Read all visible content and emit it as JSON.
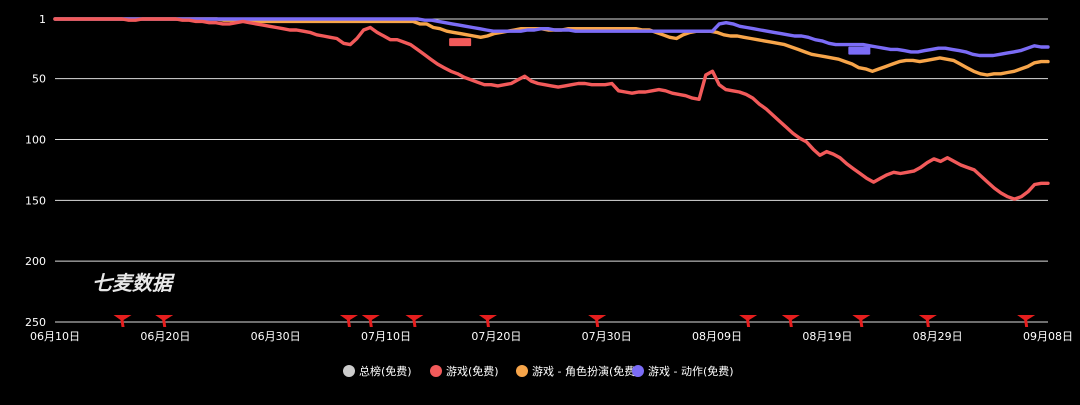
{
  "chart_data": {
    "type": "line",
    "watermark": "七麦数据",
    "y_axis": {
      "reversed": true,
      "ylim": [
        1,
        250
      ],
      "ticks": [
        "1",
        "50",
        "100",
        "150",
        "200",
        "250"
      ]
    },
    "x_axis": {
      "tick_labels": [
        "06月10日",
        "06月20日",
        "06月30日",
        "07月10日",
        "07月20日",
        "07月30日",
        "08月09日",
        "08月19日",
        "08月29日",
        "09月08日"
      ]
    },
    "grid": "horizontal",
    "legend_position": "bottom",
    "colors": {
      "overall": "#cccccc",
      "games": "#f25a5a",
      "games_sub1": "#f7a54a",
      "games_sub2": "#7b6cf6",
      "marker": "#e61e1e",
      "grid": "#dddddd"
    },
    "series": [
      {
        "key": "overall",
        "name": "总榜(免费)",
        "color": "#cccccc",
        "values": []
      },
      {
        "key": "games",
        "name": "游戏(免费)",
        "color": "#f25a5a",
        "values": [
          1,
          1,
          1,
          1,
          1,
          1,
          1,
          1,
          1,
          1,
          1,
          2,
          2,
          1,
          1,
          1,
          1,
          1,
          1,
          2,
          2,
          3,
          3,
          4,
          4,
          5,
          5,
          4,
          3,
          4,
          5,
          6,
          7,
          8,
          9,
          10,
          10,
          11,
          12,
          14,
          15,
          16,
          17,
          21,
          22,
          17,
          10,
          8,
          12,
          15,
          18,
          18,
          20,
          22,
          26,
          30,
          34,
          38,
          41,
          44,
          46,
          49,
          51,
          53,
          55,
          55,
          56,
          55,
          54,
          51,
          48,
          52,
          54,
          55,
          56,
          57,
          56,
          55,
          54,
          54,
          55,
          55,
          55,
          54,
          60,
          61,
          62,
          61,
          61,
          60,
          59,
          60,
          62,
          63,
          64,
          66,
          67,
          47,
          44,
          55,
          59,
          60,
          61,
          63,
          66,
          71,
          75,
          80,
          85,
          90,
          95,
          99,
          102,
          108,
          113,
          110,
          112,
          115,
          120,
          124,
          128,
          132,
          135,
          132,
          129,
          127,
          128,
          127,
          126,
          123,
          119,
          116,
          118,
          115,
          118,
          121,
          123,
          125,
          130,
          135,
          140,
          144,
          147,
          149,
          147,
          143,
          137,
          136,
          136
        ]
      },
      {
        "key": "games_sub1",
        "name": "游戏 - 角色扮演(免费)",
        "color": "#f7a54a",
        "values": [
          1,
          1,
          1,
          1,
          1,
          1,
          1,
          1,
          1,
          1,
          1,
          1,
          1,
          1,
          1,
          1,
          1,
          1,
          1,
          1,
          1,
          1,
          1,
          1,
          1,
          2,
          2,
          2,
          2,
          2,
          3,
          3,
          3,
          3,
          3,
          3,
          3,
          3,
          3,
          3,
          3,
          3,
          3,
          3,
          3,
          3,
          3,
          3,
          3,
          3,
          3,
          3,
          3,
          3,
          5,
          5,
          8,
          9,
          11,
          12,
          13,
          14,
          15,
          16,
          15,
          13,
          12,
          11,
          10,
          9,
          9,
          9,
          9,
          10,
          10,
          10,
          9,
          9,
          9,
          9,
          9,
          9,
          9,
          9,
          9,
          9,
          9,
          10,
          10,
          12,
          14,
          16,
          17,
          14,
          12,
          11,
          11,
          11,
          12,
          14,
          15,
          15,
          16,
          17,
          18,
          19,
          20,
          21,
          22,
          24,
          26,
          28,
          30,
          31,
          32,
          33,
          34,
          36,
          38,
          41,
          42,
          44,
          42,
          40,
          38,
          36,
          35,
          35,
          36,
          35,
          34,
          33,
          34,
          35,
          38,
          41,
          44,
          46,
          47,
          46,
          46,
          45,
          44,
          42,
          40,
          37,
          36,
          36
        ]
      },
      {
        "key": "games_sub2",
        "name": "游戏 - 动作(免费)",
        "color": "#7b6cf6",
        "values": [
          1,
          1,
          1,
          1,
          1,
          1,
          1,
          1,
          1,
          1,
          1,
          1,
          1,
          1,
          1,
          1,
          1,
          1,
          1,
          1,
          1,
          1,
          1,
          1,
          1,
          1,
          1,
          1,
          1,
          1,
          1,
          1,
          1,
          1,
          1,
          1,
          1,
          1,
          1,
          1,
          1,
          1,
          1,
          1,
          1,
          1,
          1,
          1,
          1,
          1,
          1,
          1,
          1,
          1,
          2,
          2,
          3,
          4,
          5,
          6,
          7,
          8,
          9,
          10,
          11,
          11,
          11,
          11,
          11,
          10,
          10,
          9,
          9,
          10,
          10,
          10,
          11,
          11,
          11,
          11,
          11,
          11,
          11,
          11,
          11,
          11,
          11,
          11,
          11,
          11,
          11,
          11,
          11,
          11,
          11,
          11,
          11,
          5,
          4,
          5,
          7,
          8,
          9,
          10,
          11,
          12,
          13,
          14,
          15,
          15,
          16,
          18,
          19,
          21,
          22,
          22,
          22,
          22,
          22,
          23,
          24,
          25,
          26,
          26,
          27,
          28,
          28,
          27,
          26,
          25,
          25,
          26,
          27,
          28,
          30,
          31,
          31,
          31,
          30,
          29,
          28,
          27,
          25,
          23,
          24,
          24
        ]
      }
    ],
    "event_markers_x": [
      0.068,
      0.11,
      0.296,
      0.318,
      0.362,
      0.436,
      0.546,
      0.698,
      0.741,
      0.812,
      0.879,
      0.978
    ],
    "event_badges": [
      {
        "series": "games",
        "x": 0.408,
        "y": 20
      },
      {
        "series": "games_sub2",
        "x": 0.81,
        "y": 27
      }
    ]
  }
}
